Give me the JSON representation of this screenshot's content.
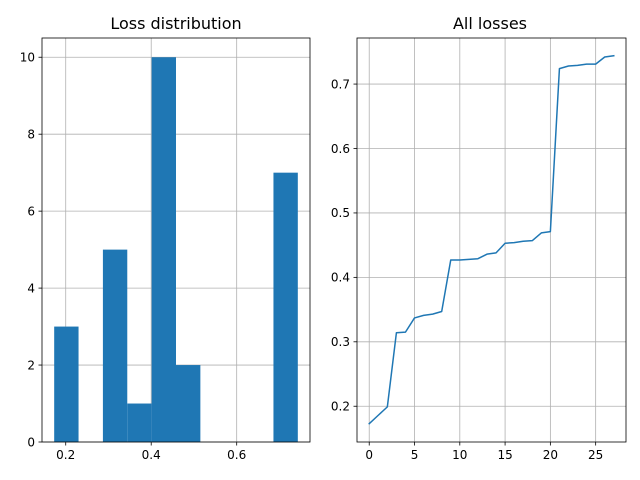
{
  "chart_data": [
    {
      "type": "bar",
      "title": "Loss distribution",
      "xlabel": "",
      "ylabel": "",
      "bins": [
        {
          "x0": 0.173,
          "x1": 0.23,
          "count": 3
        },
        {
          "x0": 0.23,
          "x1": 0.287,
          "count": 0
        },
        {
          "x0": 0.287,
          "x1": 0.344,
          "count": 5
        },
        {
          "x0": 0.344,
          "x1": 0.401,
          "count": 1
        },
        {
          "x0": 0.401,
          "x1": 0.458,
          "count": 10
        },
        {
          "x0": 0.458,
          "x1": 0.515,
          "count": 2
        },
        {
          "x0": 0.515,
          "x1": 0.572,
          "count": 0
        },
        {
          "x0": 0.572,
          "x1": 0.629,
          "count": 0
        },
        {
          "x0": 0.629,
          "x1": 0.686,
          "count": 0
        },
        {
          "x0": 0.686,
          "x1": 0.743,
          "count": 7
        }
      ],
      "xlim": [
        0.1445,
        0.7715
      ],
      "ylim": [
        0,
        10.5
      ],
      "xticks": [
        {
          "v": 0.2,
          "label": "0.2"
        },
        {
          "v": 0.4,
          "label": "0.4"
        },
        {
          "v": 0.6,
          "label": "0.6"
        }
      ],
      "yticks": [
        {
          "v": 0,
          "label": "0"
        },
        {
          "v": 2,
          "label": "2"
        },
        {
          "v": 4,
          "label": "4"
        },
        {
          "v": 6,
          "label": "6"
        },
        {
          "v": 8,
          "label": "8"
        },
        {
          "v": 10,
          "label": "10"
        }
      ],
      "grid": true,
      "color": "#1f77b4"
    },
    {
      "type": "line",
      "title": "All losses",
      "xlabel": "",
      "ylabel": "",
      "x": [
        0,
        1,
        2,
        3,
        4,
        5,
        6,
        7,
        8,
        9,
        10,
        11,
        12,
        13,
        14,
        15,
        16,
        17,
        18,
        19,
        20,
        21,
        22,
        23,
        24,
        25,
        26,
        27
      ],
      "y": [
        0.173,
        0.186,
        0.199,
        0.314,
        0.315,
        0.337,
        0.341,
        0.343,
        0.347,
        0.427,
        0.427,
        0.428,
        0.429,
        0.436,
        0.438,
        0.453,
        0.454,
        0.456,
        0.457,
        0.469,
        0.471,
        0.724,
        0.728,
        0.729,
        0.731,
        0.731,
        0.742,
        0.744
      ],
      "xlim": [
        -1.35,
        28.35
      ],
      "ylim": [
        0.1445,
        0.7715
      ],
      "xticks": [
        {
          "v": 0,
          "label": "0"
        },
        {
          "v": 5,
          "label": "5"
        },
        {
          "v": 10,
          "label": "10"
        },
        {
          "v": 15,
          "label": "15"
        },
        {
          "v": 20,
          "label": "20"
        },
        {
          "v": 25,
          "label": "25"
        }
      ],
      "yticks": [
        {
          "v": 0.2,
          "label": "0.2"
        },
        {
          "v": 0.3,
          "label": "0.3"
        },
        {
          "v": 0.4,
          "label": "0.4"
        },
        {
          "v": 0.5,
          "label": "0.5"
        },
        {
          "v": 0.6,
          "label": "0.6"
        },
        {
          "v": 0.7,
          "label": "0.7"
        }
      ],
      "grid": true,
      "color": "#1f77b4"
    }
  ]
}
